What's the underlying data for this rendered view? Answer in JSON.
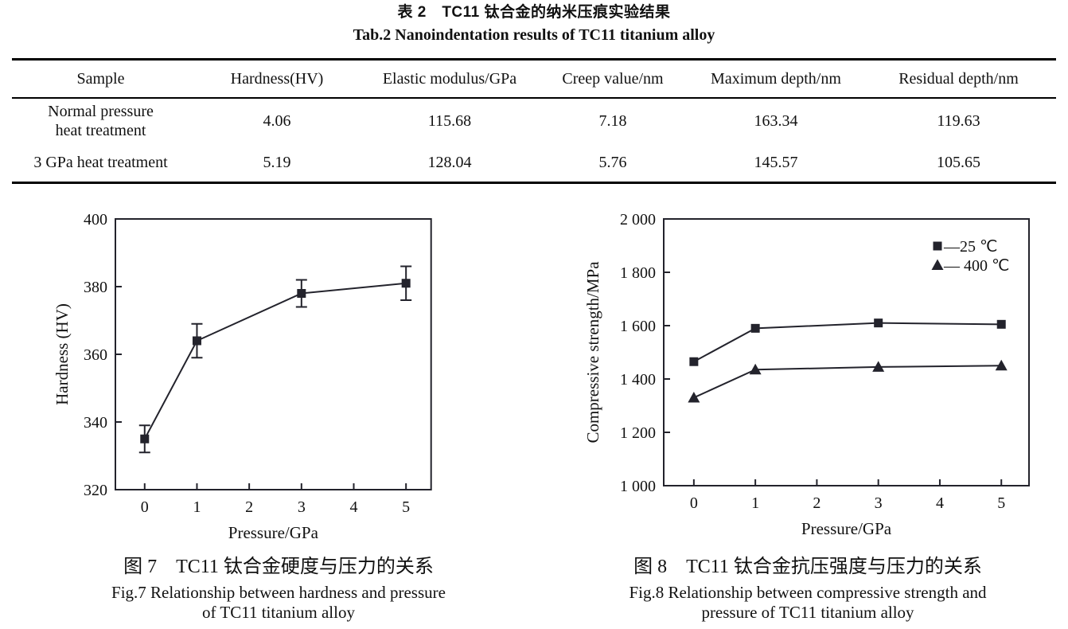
{
  "table_section": {
    "title_zh": "表 2　TC11 钛合金的纳米压痕实验结果",
    "title_en": "Tab.2 Nanoindentation results of TC11 titanium alloy",
    "columns": [
      "Sample",
      "Hardness(HV)",
      "Elastic modulus/GPa",
      "Creep value/nm",
      "Maximum depth/nm",
      "Residual depth/nm"
    ],
    "rows": [
      {
        "sample_lines": [
          "Normal pressure",
          "heat treatment"
        ],
        "values": [
          "4.06",
          "115.68",
          "7.18",
          "163.34",
          "119.63"
        ]
      },
      {
        "sample_lines": [
          "3 GPa heat treatment"
        ],
        "values": [
          "5.19",
          "128.04",
          "5.76",
          "145.57",
          "105.65"
        ]
      }
    ]
  },
  "chart_data": [
    {
      "type": "line",
      "x": [
        0,
        1,
        3,
        5
      ],
      "series": [
        {
          "name": "hardness",
          "marker": "square",
          "values": [
            335,
            364,
            378,
            381
          ],
          "errors": [
            4,
            5,
            4,
            5
          ]
        }
      ],
      "xlabel": "Pressure/GPa",
      "ylabel": "Hardness (HV)",
      "xlim": [
        -0.56,
        5.48
      ],
      "ylim": [
        320,
        400
      ],
      "xticks": [
        0,
        1,
        2,
        3,
        4,
        5
      ],
      "yticks": [
        320,
        340,
        360,
        380,
        400
      ],
      "grid": false,
      "legend_position": "none",
      "caption_zh": "图 7　TC11 钛合金硬度与压力的关系",
      "caption_en_line1": "Fig.7 Relationship between hardness and pressure",
      "caption_en_line2": "of TC11 titanium alloy"
    },
    {
      "type": "line",
      "x": [
        0,
        1,
        3,
        5
      ],
      "series": [
        {
          "name": "25 C",
          "marker": "square",
          "values": [
            1465,
            1590,
            1610,
            1605
          ]
        },
        {
          "name": "400 C",
          "marker": "triangle",
          "values": [
            1330,
            1435,
            1445,
            1450
          ]
        }
      ],
      "xlabel": "Pressure/GPa",
      "ylabel": "Compressive strength/MPa",
      "xlim": [
        -0.49,
        5.45
      ],
      "ylim": [
        1000,
        2000
      ],
      "xticks": [
        0,
        1,
        2,
        3,
        4,
        5
      ],
      "yticks": [
        1000,
        1200,
        1400,
        1600,
        1800,
        2000
      ],
      "ytick_labels": [
        "1 000",
        "1 200",
        "1 400",
        "1 600",
        "1 800",
        "2 000"
      ],
      "grid": false,
      "legend_position": "top-right",
      "legend": [
        {
          "marker": "square",
          "label": "—25 ℃"
        },
        {
          "marker": "triangle",
          "label": "— 400 ℃"
        }
      ],
      "caption_zh": "图 8　TC11 钛合金抗压强度与压力的关系",
      "caption_en_line1": "Fig.8 Relationship between compressive strength and",
      "caption_en_line2": "pressure of TC11 titanium alloy"
    }
  ],
  "colors": {
    "ink": "#111111",
    "chart_line": "#23232c",
    "background": "#ffffff"
  }
}
